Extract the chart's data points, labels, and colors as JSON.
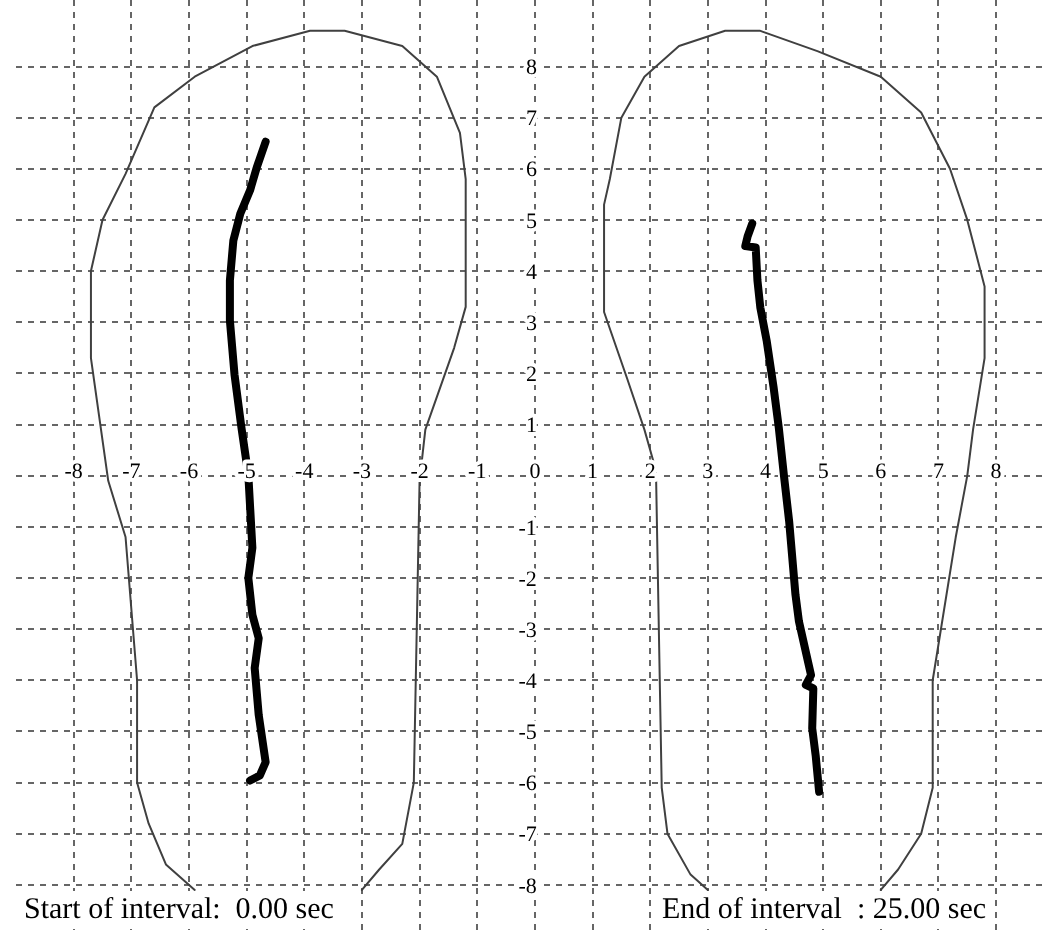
{
  "chart_data": {
    "type": "line",
    "xlim": [
      -9,
      8.9
    ],
    "ylim": [
      -9,
      9.3
    ],
    "xticks": [
      -8,
      -7,
      -6,
      -5,
      -4,
      -3,
      -2,
      -1,
      0,
      1,
      2,
      3,
      4,
      5,
      6,
      7,
      8
    ],
    "yticks": [
      8,
      7,
      6,
      5,
      4,
      3,
      2,
      1,
      {
        "value": 0,
        "label": null
      },
      -1,
      -2,
      -3,
      -4,
      -5,
      -6,
      -7,
      -8
    ],
    "grid": true,
    "annotations": [
      "Start of interval:  0.00 sec",
      "End of interval  : 25.00 sec"
    ],
    "series": [
      {
        "color": "#404040",
        "x": [
          -5.9,
          -6.4,
          -6.7,
          -6.9,
          -6.9,
          -7.1,
          -7.4,
          -7.7,
          -7.7,
          -7.5,
          -7.1,
          -6.6,
          -5.9,
          -4.9,
          -3.9,
          -3.3,
          -2.3,
          -1.7,
          -1.3,
          -1.2,
          -1.2,
          -1.4,
          -1.9,
          -2.0,
          -2.1,
          -2.3,
          -2.7,
          -3.0
        ],
        "values": [
          -8.1,
          -7.6,
          -6.8,
          -6.0,
          -4.0,
          -1.2,
          -0.1,
          2.3,
          4.0,
          5.0,
          5.9,
          7.2,
          7.8,
          8.4,
          8.7,
          8.7,
          8.4,
          7.8,
          6.7,
          5.8,
          3.3,
          2.5,
          0.9,
          -0.1,
          -6.0,
          -7.2,
          -7.7,
          -8.1
        ]
      },
      {
        "color": "#404040",
        "x": [
          3.0,
          2.7,
          2.3,
          2.2,
          2.1,
          1.9,
          1.6,
          1.2,
          1.2,
          1.3,
          1.5,
          1.9,
          2.5,
          3.3,
          3.9,
          4.9,
          6.0,
          6.7,
          7.2,
          7.5,
          7.8,
          7.8,
          7.6,
          7.5,
          7.3,
          6.9,
          6.9,
          6.7,
          6.3,
          6.0
        ],
        "values": [
          -8.1,
          -7.8,
          -7.0,
          -6.1,
          0.1,
          0.9,
          1.9,
          3.2,
          5.3,
          5.8,
          7.0,
          7.8,
          8.4,
          8.7,
          8.7,
          8.3,
          7.8,
          7.1,
          6.0,
          5.0,
          3.7,
          2.3,
          0.9,
          0.0,
          -1.2,
          -4.0,
          -6.1,
          -7.0,
          -7.7,
          -8.1
        ]
      },
      {
        "color": "#000000",
        "x": [
          -4.67,
          -4.82,
          -4.94,
          -5.11,
          -5.23,
          -5.29,
          -5.29,
          -5.21,
          -5.09,
          -4.97,
          -4.9,
          -4.97,
          -4.9,
          -4.79,
          -4.86,
          -4.79,
          -4.67,
          -4.77,
          -4.94
        ],
        "values": [
          6.53,
          6.04,
          5.58,
          5.12,
          4.6,
          3.82,
          3.03,
          1.98,
          0.94,
          0.01,
          -1.41,
          -2.0,
          -2.72,
          -3.18,
          -3.76,
          -4.68,
          -5.6,
          -5.86,
          -5.96
        ]
      },
      {
        "color": "#000000",
        "x": [
          3.77,
          3.69,
          3.65,
          3.83,
          3.86,
          3.91,
          4.02,
          4.14,
          4.23,
          4.32,
          4.41,
          4.52,
          4.58,
          4.79,
          4.7,
          4.83,
          4.81,
          4.87,
          4.93
        ],
        "values": [
          4.93,
          4.68,
          4.49,
          4.46,
          3.82,
          3.29,
          2.64,
          1.73,
          0.94,
          0.0,
          -0.89,
          -2.33,
          -2.85,
          -3.9,
          -4.09,
          -4.16,
          -4.94,
          -5.47,
          -6.18
        ]
      }
    ]
  }
}
